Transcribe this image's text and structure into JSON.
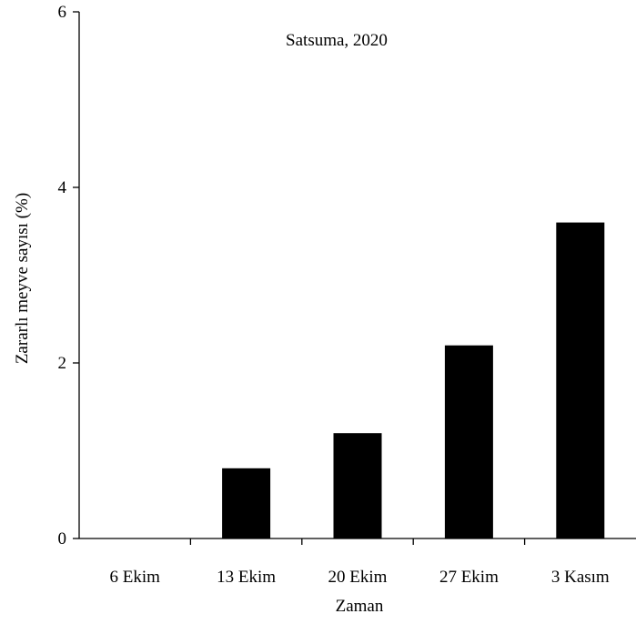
{
  "chart_data": {
    "type": "bar",
    "title": "Satsuma, 2020",
    "xlabel": "Zaman",
    "ylabel": "Zararlı meyve sayısı (%)",
    "categories": [
      "6 Ekim",
      "13 Ekim",
      "20 Ekim",
      "27 Ekim",
      "3 Kasım"
    ],
    "values": [
      0,
      0.8,
      1.2,
      2.2,
      3.6
    ],
    "ylim": [
      0,
      6
    ],
    "yticks": [
      "0",
      "2",
      "4",
      "6"
    ],
    "grid": false,
    "bar_color": "#000000"
  }
}
